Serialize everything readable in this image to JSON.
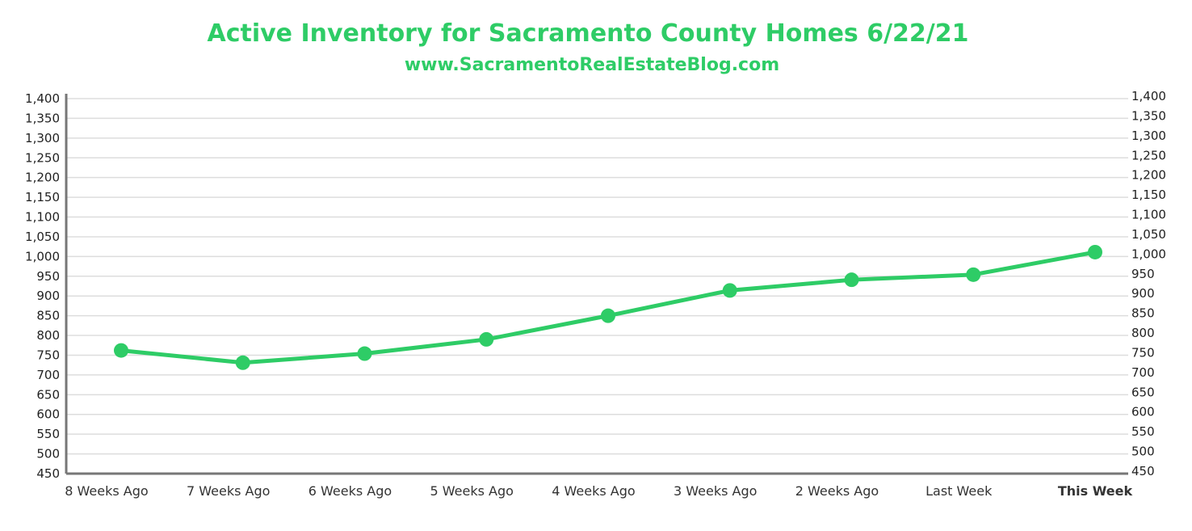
{
  "chart_data": {
    "type": "line",
    "title": "Active Inventory for Sacramento County Homes 6/22/21",
    "subtitle": "www.SacramentoRealEstateBlog.com",
    "categories": [
      "8 Weeks Ago",
      "7 Weeks Ago",
      "6 Weeks Ago",
      "5 Weeks Ago",
      "4 Weeks Ago",
      "3 Weeks Ago",
      "2 Weeks Ago",
      "Last Week",
      "This Week"
    ],
    "highlight_category": "This Week",
    "series": [
      {
        "values": [
          762,
          731,
          754,
          790,
          850,
          914,
          941,
          954,
          1011
        ]
      }
    ],
    "ylim": [
      450,
      1400
    ],
    "y_ticks": [
      450,
      500,
      550,
      600,
      650,
      700,
      750,
      800,
      850,
      900,
      950,
      1000,
      1050,
      1100,
      1150,
      1200,
      1250,
      1300,
      1350,
      1400
    ],
    "y_tick_labels": [
      "450",
      "500",
      "550",
      "600",
      "650",
      "700",
      "750",
      "800",
      "850",
      "900",
      "950",
      "1,000",
      "1,050",
      "1,100",
      "1,150",
      "1,200",
      "1,250",
      "1,300",
      "1,350",
      "1,400"
    ],
    "dual_y_axis": true,
    "grid": true,
    "legend": "none",
    "colors": {
      "series": "#2ecc66",
      "title": "#2ecc66",
      "grid": "#dddddd",
      "axis": "#777777"
    }
  }
}
